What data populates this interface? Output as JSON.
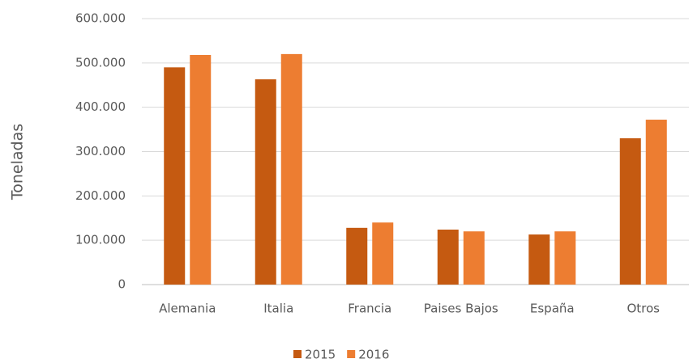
{
  "chart_data": {
    "type": "bar",
    "y_label": "Toneladas",
    "categories": [
      "Alemania",
      "Italia",
      "Francia",
      "Paises Bajos",
      "España",
      "Otros"
    ],
    "series": [
      {
        "name": "2015",
        "color": "#c55a11",
        "values": [
          490000,
          463000,
          128000,
          124000,
          113000,
          330000
        ]
      },
      {
        "name": "2016",
        "color": "#ed7d31",
        "values": [
          518000,
          520000,
          140000,
          120000,
          120000,
          372000
        ]
      }
    ],
    "ylim": [
      0,
      600000
    ],
    "yticks": [
      0,
      {
        "value": 100000,
        "label": "100.000"
      },
      {
        "value": 200000,
        "label": "200.000"
      },
      {
        "value": 300000,
        "label": "300.000"
      },
      {
        "value": 400000,
        "label": "400.000"
      },
      {
        "value": 500000,
        "label": "500.000"
      },
      {
        "value": 600000,
        "label": "600.000"
      }
    ],
    "grid": true,
    "legend": "bottom"
  }
}
